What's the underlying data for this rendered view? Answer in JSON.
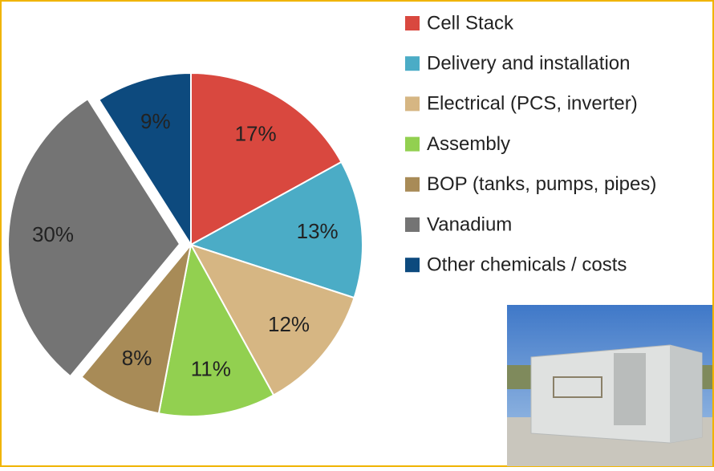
{
  "chart_data": {
    "type": "pie",
    "categories": [
      "Cell Stack",
      "Delivery and installation",
      "Electrical (PCS, inverter)",
      "Assembly",
      "BOP (tanks, pumps, pipes)",
      "Vanadium",
      "Other chemicals / costs"
    ],
    "values": [
      17,
      13,
      12,
      11,
      8,
      30,
      9
    ],
    "value_labels": [
      "17%",
      "13%",
      "12%",
      "11%",
      "8%",
      "30%",
      "9%"
    ],
    "colors": [
      "#d9483f",
      "#4bacc6",
      "#d6b683",
      "#92d050",
      "#a88b57",
      "#747474",
      "#0d4a7e"
    ],
    "explode": [
      false,
      false,
      false,
      false,
      false,
      true,
      false
    ],
    "legend": "right"
  }
}
